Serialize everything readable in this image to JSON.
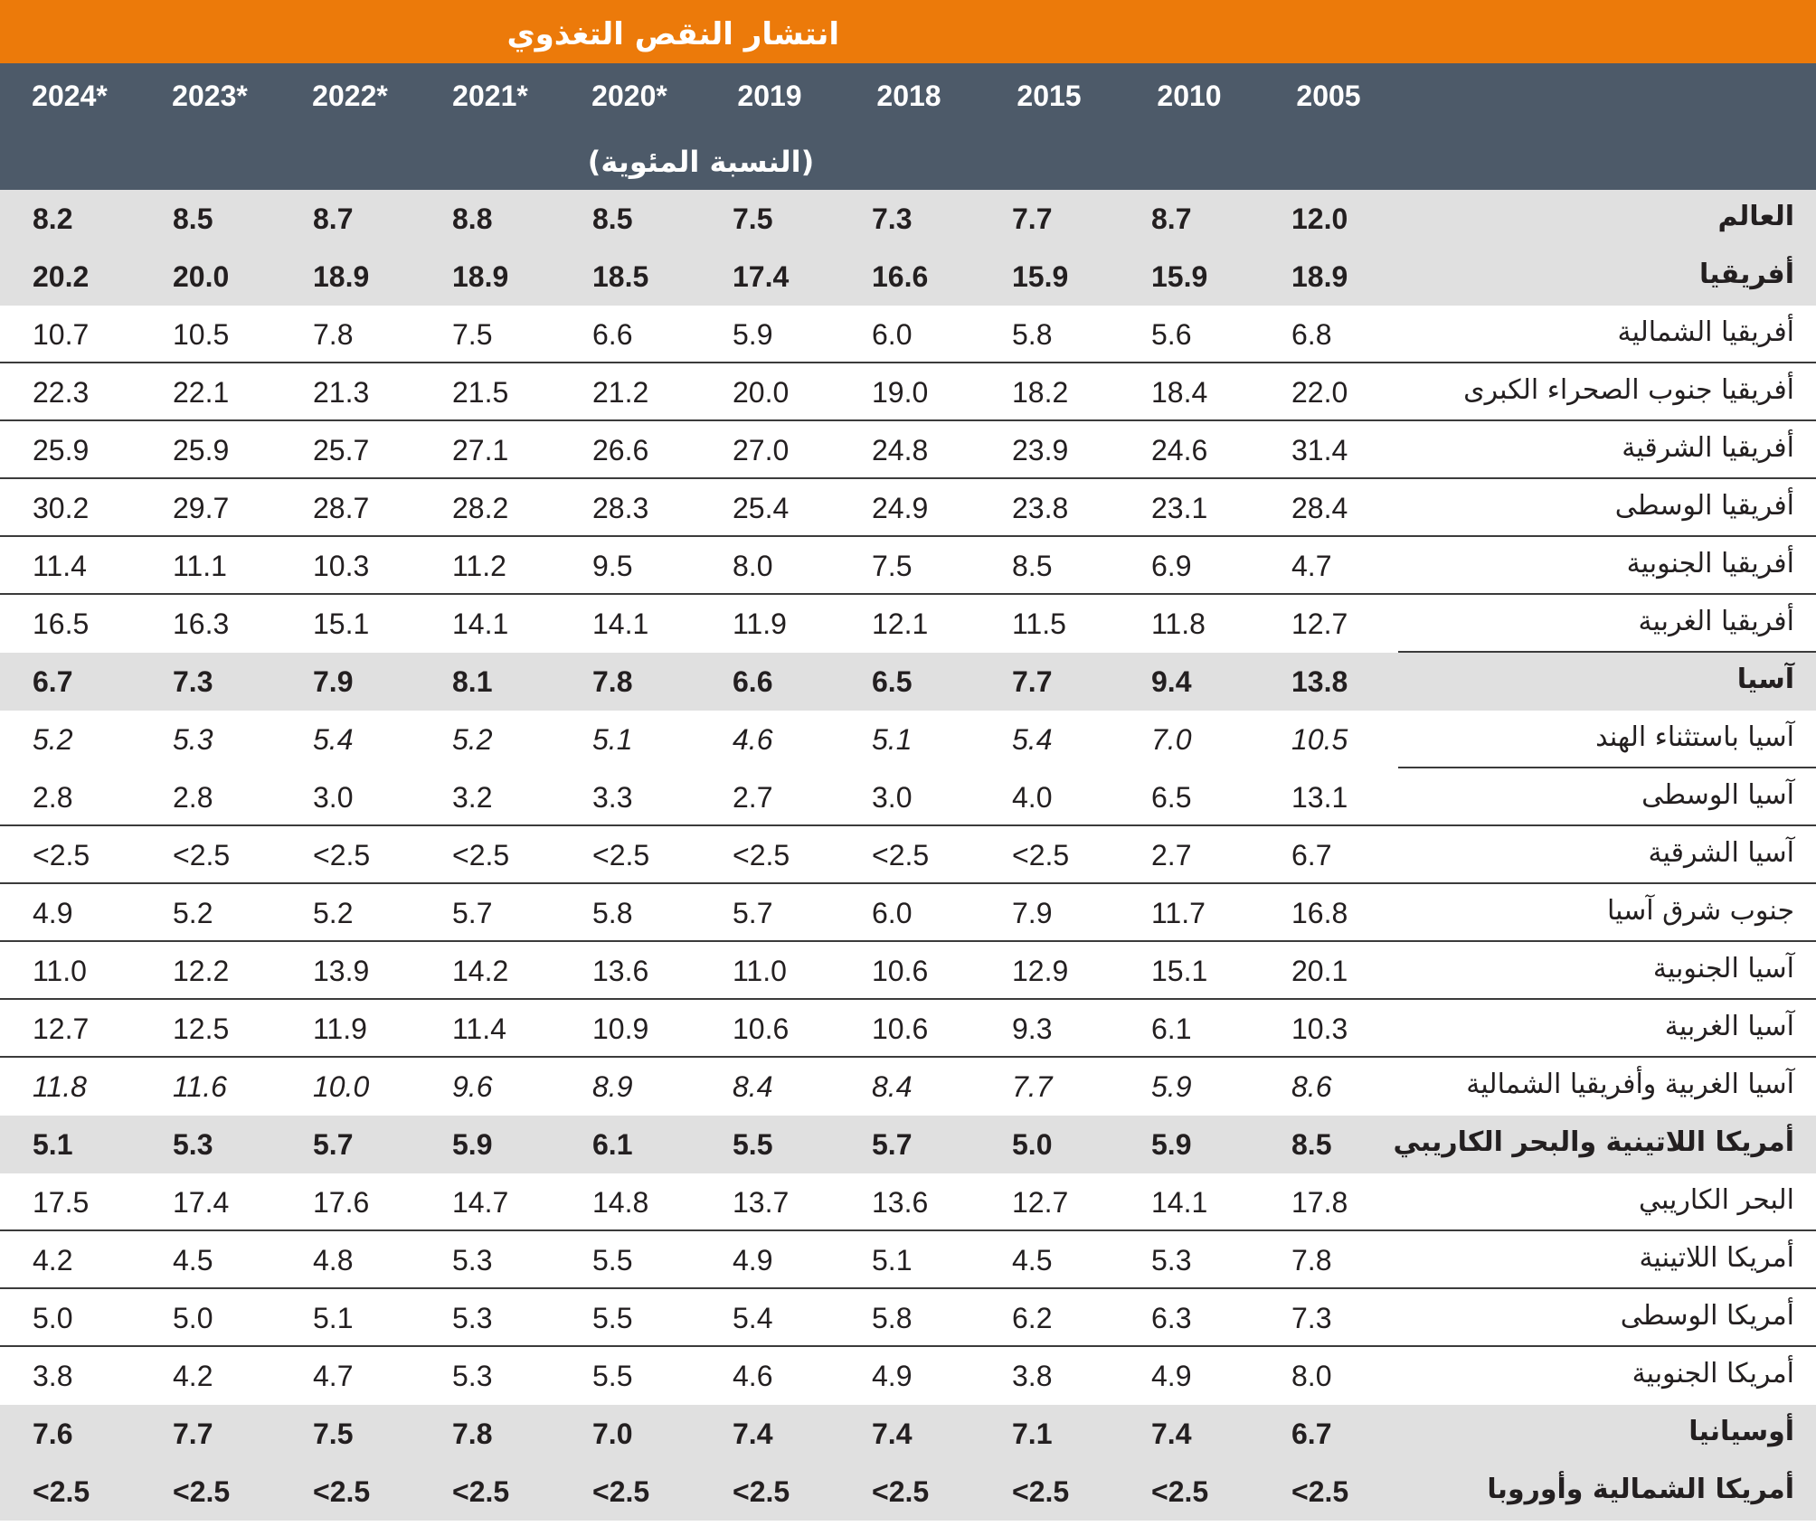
{
  "title": "انتشار النقص التغذوي",
  "unit_label": "(النسبة المئوية)",
  "years": [
    "2024*",
    "2023*",
    "2022*",
    "2021*",
    "2020*",
    "2019",
    "2018",
    "2015",
    "2010",
    "2005"
  ],
  "rows": [
    {
      "label": "العالم",
      "values": [
        "8.2",
        "8.5",
        "8.7",
        "8.8",
        "8.5",
        "7.5",
        "7.3",
        "7.7",
        "8.7",
        "12.0"
      ]
    },
    {
      "label": "أفريقيا",
      "values": [
        "20.2",
        "20.0",
        "18.9",
        "18.9",
        "18.5",
        "17.4",
        "16.6",
        "15.9",
        "15.9",
        "18.9"
      ]
    },
    {
      "label": "أفريقيا الشمالية",
      "values": [
        "10.7",
        "10.5",
        "7.8",
        "7.5",
        "6.6",
        "5.9",
        "6.0",
        "5.8",
        "5.6",
        "6.8"
      ]
    },
    {
      "label": "أفريقيا جنوب الصحراء الكبرى",
      "values": [
        "22.3",
        "22.1",
        "21.3",
        "21.5",
        "21.2",
        "20.0",
        "19.0",
        "18.2",
        "18.4",
        "22.0"
      ]
    },
    {
      "label": "أفريقيا الشرقية",
      "values": [
        "25.9",
        "25.9",
        "25.7",
        "27.1",
        "26.6",
        "27.0",
        "24.8",
        "23.9",
        "24.6",
        "31.4"
      ]
    },
    {
      "label": "أفريقيا الوسطى",
      "values": [
        "30.2",
        "29.7",
        "28.7",
        "28.2",
        "28.3",
        "25.4",
        "24.9",
        "23.8",
        "23.1",
        "28.4"
      ]
    },
    {
      "label": "أفريقيا الجنوبية",
      "values": [
        "11.4",
        "11.1",
        "10.3",
        "11.2",
        "9.5",
        "8.0",
        "7.5",
        "8.5",
        "6.9",
        "4.7"
      ]
    },
    {
      "label": "أفريقيا الغربية",
      "values": [
        "16.5",
        "16.3",
        "15.1",
        "14.1",
        "14.1",
        "11.9",
        "12.1",
        "11.5",
        "11.8",
        "12.7"
      ]
    },
    {
      "label": "آسيا",
      "values": [
        "6.7",
        "7.3",
        "7.9",
        "8.1",
        "7.8",
        "6.6",
        "6.5",
        "7.7",
        "9.4",
        "13.8"
      ]
    },
    {
      "label": "آسيا باستثناء الهند",
      "values": [
        "5.2",
        "5.3",
        "5.4",
        "5.2",
        "5.1",
        "4.6",
        "5.1",
        "5.4",
        "7.0",
        "10.5"
      ]
    },
    {
      "label": "آسيا الوسطى",
      "values": [
        "2.8",
        "2.8",
        "3.0",
        "3.2",
        "3.3",
        "2.7",
        "3.0",
        "4.0",
        "6.5",
        "13.1"
      ]
    },
    {
      "label": "آسيا الشرقية",
      "values": [
        "<2.5",
        "<2.5",
        "<2.5",
        "<2.5",
        "<2.5",
        "<2.5",
        "<2.5",
        "<2.5",
        "2.7",
        "6.7"
      ]
    },
    {
      "label": "جنوب شرق آسيا",
      "values": [
        "4.9",
        "5.2",
        "5.2",
        "5.7",
        "5.8",
        "5.7",
        "6.0",
        "7.9",
        "11.7",
        "16.8"
      ]
    },
    {
      "label": "آسيا الجنوبية",
      "values": [
        "11.0",
        "12.2",
        "13.9",
        "14.2",
        "13.6",
        "11.0",
        "10.6",
        "12.9",
        "15.1",
        "20.1"
      ]
    },
    {
      "label": "آسيا الغربية",
      "values": [
        "12.7",
        "12.5",
        "11.9",
        "11.4",
        "10.9",
        "10.6",
        "10.6",
        "9.3",
        "6.1",
        "10.3"
      ]
    },
    {
      "label": "آسيا الغربية وأفريقيا الشمالية",
      "values": [
        "11.8",
        "11.6",
        "10.0",
        "9.6",
        "8.9",
        "8.4",
        "8.4",
        "7.7",
        "5.9",
        "8.6"
      ]
    },
    {
      "label": "أمريكا اللاتينية والبحر الكاريبي",
      "values": [
        "5.1",
        "5.3",
        "5.7",
        "5.9",
        "6.1",
        "5.5",
        "5.7",
        "5.0",
        "5.9",
        "8.5"
      ]
    },
    {
      "label": "البحر الكاريبي",
      "values": [
        "17.5",
        "17.4",
        "17.6",
        "14.7",
        "14.8",
        "13.7",
        "13.6",
        "12.7",
        "14.1",
        "17.8"
      ]
    },
    {
      "label": "أمريكا اللاتينية",
      "values": [
        "4.2",
        "4.5",
        "4.8",
        "5.3",
        "5.5",
        "4.9",
        "5.1",
        "4.5",
        "5.3",
        "7.8"
      ]
    },
    {
      "label": "أمريكا الوسطى",
      "values": [
        "5.0",
        "5.0",
        "5.1",
        "5.3",
        "5.5",
        "5.4",
        "5.8",
        "6.2",
        "6.3",
        "7.3"
      ]
    },
    {
      "label": "أمريكا الجنوبية",
      "values": [
        "3.8",
        "4.2",
        "4.7",
        "5.3",
        "5.5",
        "4.6",
        "4.9",
        "3.8",
        "4.9",
        "8.0"
      ]
    },
    {
      "label": "أوسيانيا",
      "values": [
        "7.6",
        "7.7",
        "7.5",
        "7.8",
        "7.0",
        "7.4",
        "7.4",
        "7.1",
        "7.4",
        "6.7"
      ]
    },
    {
      "label": "أمريكا الشمالية وأوروبا",
      "values": [
        "<2.5",
        "<2.5",
        "<2.5",
        "<2.5",
        "<2.5",
        "<2.5",
        "<2.5",
        "<2.5",
        "<2.5",
        "<2.5"
      ]
    }
  ]
}
